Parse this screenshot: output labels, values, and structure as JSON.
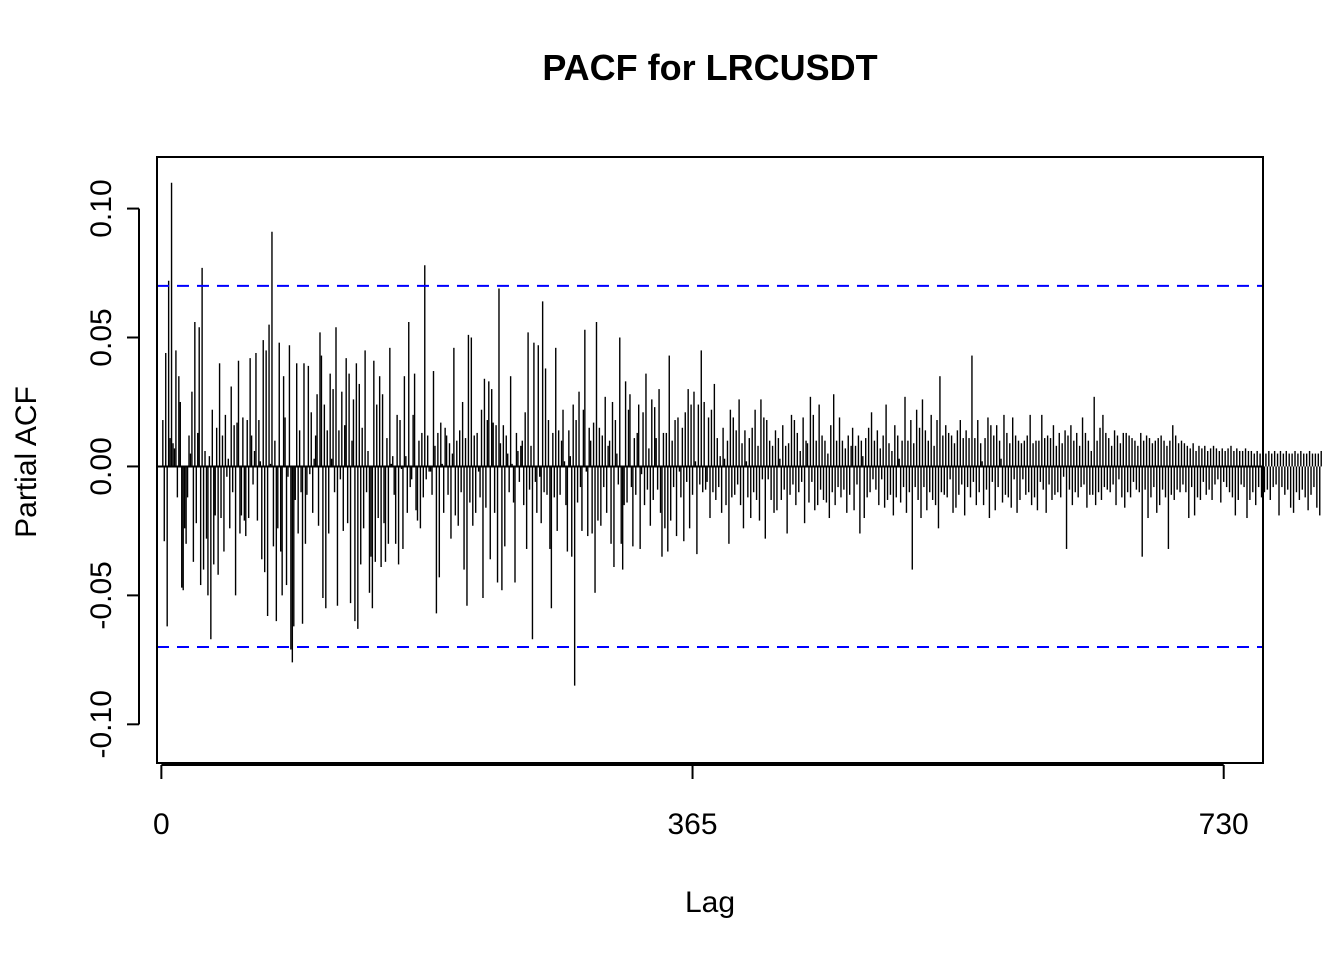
{
  "chart_data": {
    "type": "bar",
    "title": "PACF for LRCUSDT",
    "xlabel": "Lag",
    "ylabel": "Partial ACF",
    "xlim": [
      -3,
      757
    ],
    "ylim": [
      -0.115,
      0.12
    ],
    "x_ticks": [
      0,
      365,
      730
    ],
    "x_tick_labels": [
      "0",
      "365",
      "730"
    ],
    "y_ticks": [
      -0.1,
      -0.05,
      0.0,
      0.05,
      0.1
    ],
    "y_tick_labels": [
      "-0.10",
      "-0.05",
      "0.00",
      "0.05",
      "0.10"
    ],
    "confidence_bound": 0.07,
    "series_color": "#000000",
    "bound_color": "#0000ff",
    "grid": false,
    "legend": "none",
    "lags_start": 1,
    "values": [
      0.018,
      -0.029,
      0.044,
      -0.062,
      0.072,
      0.011,
      0.11,
      0.009,
      0.007,
      0.045,
      -0.012,
      0.035,
      0.025,
      -0.047,
      -0.048,
      -0.024,
      -0.03,
      -0.012,
      0.012,
      0.005,
      0.029,
      -0.037,
      0.056,
      -0.022,
      0.013,
      0.054,
      -0.046,
      0.077,
      -0.04,
      0.006,
      -0.028,
      -0.05,
      0.004,
      -0.067,
      0.022,
      -0.038,
      -0.019,
      0.015,
      -0.042,
      0.04,
      -0.02,
      0.012,
      -0.033,
      0.02,
      -0.004,
      0.003,
      -0.024,
      0.031,
      -0.01,
      0.016,
      -0.05,
      0.017,
      0.041,
      -0.026,
      -0.019,
      0.019,
      -0.021,
      -0.027,
      0.018,
      -0.02,
      0.042,
      0.012,
      -0.007,
      0.006,
      0.044,
      -0.021,
      0.018,
      0.002,
      -0.036,
      0.049,
      -0.041,
      0.045,
      -0.058,
      0.055,
      0.001,
      0.091,
      -0.031,
      0.01,
      -0.06,
      -0.024,
      0.048,
      -0.033,
      -0.05,
      0.035,
      0.019,
      -0.046,
      -0.004,
      0.047,
      -0.071,
      -0.076,
      -0.062,
      -0.013,
      0.04,
      -0.026,
      0.014,
      -0.01,
      -0.061,
      0.04,
      -0.03,
      -0.011,
      0.039,
      -0.003,
      0.021,
      -0.018,
      0.003,
      0.012,
      0.028,
      -0.023,
      0.052,
      0.043,
      -0.051,
      0.024,
      -0.055,
      0.014,
      -0.026,
      0.036,
      0.003,
      0.03,
      -0.01,
      0.054,
      -0.054,
      0.014,
      -0.005,
      0.029,
      -0.025,
      0.016,
      0.042,
      -0.022,
      0.036,
      -0.053,
      0.01,
      0.026,
      -0.06,
      0.04,
      -0.063,
      0.032,
      -0.038,
      0.015,
      -0.024,
      0.045,
      -0.01,
      0.006,
      -0.049,
      -0.035,
      -0.055,
      0.041,
      -0.037,
      0.024,
      -0.02,
      0.035,
      -0.039,
      0.028,
      -0.022,
      -0.037,
      0.011,
      -0.03,
      0.046,
      0.001,
      0.004,
      -0.011,
      -0.03,
      0.02,
      -0.038,
      0.018,
      -0.001,
      -0.032,
      0.035,
      0.004,
      -0.018,
      0.056,
      -0.008,
      -0.005,
      0.02,
      0.036,
      -0.017,
      -0.021,
      0.01,
      -0.024,
      0.013,
      -0.012,
      0.078,
      -0.005,
      0.012,
      -0.002,
      -0.002,
      -0.011,
      0.037,
      0.008,
      -0.057,
      0.013,
      -0.043,
      0.017,
      0.001,
      -0.018,
      0.015,
      0.012,
      -0.011,
      0.009,
      -0.028,
      0.005,
      0.046,
      -0.019,
      0.01,
      -0.023,
      0.014,
      -0.01,
      0.025,
      -0.04,
      0.011,
      -0.054,
      0.051,
      -0.014,
      0.05,
      -0.023,
      0.012,
      -0.018,
      0.013,
      -0.002,
      -0.012,
      0.022,
      -0.051,
      0.034,
      -0.016,
      0.018,
      0.033,
      -0.036,
      0.03,
      0.017,
      -0.018,
      0.016,
      -0.045,
      0.069,
      0.009,
      -0.048,
      0.016,
      -0.031,
      0.012,
      0.005,
      -0.01,
      0.035,
      0.001,
      -0.014,
      -0.045,
      0.013,
      0.006,
      -0.006,
      0.008,
      0.01,
      -0.015,
      0.021,
      -0.032,
      0.052,
      -0.009,
      0.008,
      -0.067,
      0.048,
      -0.006,
      -0.018,
      0.047,
      -0.004,
      -0.022,
      0.064,
      -0.01,
      0.038,
      -0.011,
      0.018,
      -0.032,
      -0.055,
      0.013,
      -0.012,
      0.046,
      -0.025,
      0.014,
      -0.011,
      0.01,
      0.022,
      0.002,
      -0.015,
      -0.033,
      0.014,
      0.004,
      -0.035,
      0.024,
      -0.085,
      0.018,
      -0.014,
      0.029,
      -0.008,
      -0.025,
      0.022,
      0.053,
      -0.002,
      -0.027,
      0.015,
      0.01,
      -0.026,
      0.017,
      -0.049,
      0.056,
      -0.021,
      0.015,
      -0.023,
      0.012,
      -0.008,
      0.027,
      -0.018,
      0.008,
      0.01,
      -0.03,
      0.025,
      -0.039,
      0.018,
      0.005,
      -0.007,
      0.05,
      -0.03,
      -0.04,
      -0.015,
      0.033,
      -0.014,
      0.022,
      0.028,
      -0.008,
      -0.031,
      0.011,
      -0.011,
      0.013,
      0.024,
      -0.032,
      -0.003,
      0.021,
      -0.015,
      0.036,
      -0.009,
      0.007,
      -0.023,
      0.026,
      -0.013,
      0.023,
      0.011,
      -0.009,
      0.03,
      -0.018,
      -0.035,
      0.013,
      -0.024,
      0.013,
      -0.033,
      0.043,
      -0.021,
      0.01,
      -0.008,
      0.018,
      -0.027,
      0.019,
      -0.002,
      -0.012,
      0.015,
      -0.029,
      0.021,
      -0.006,
      0.03,
      -0.024,
      0.024,
      -0.011,
      0.029,
      0.002,
      -0.034,
      0.024,
      -0.007,
      0.045,
      -0.01,
      0.025,
      -0.009,
      -0.006,
      0.019,
      -0.02,
      0.022,
      -0.01,
      0.032,
      -0.013,
      0.011,
      -0.008,
      0.004,
      -0.018,
      0.015,
      0.003,
      -0.015,
      0.01,
      -0.03,
      0.022,
      -0.012,
      0.019,
      -0.011,
      0.014,
      -0.007,
      0.026,
      -0.015,
      0.009,
      -0.024,
      0.014,
      0.002,
      -0.012,
      0.011,
      -0.02,
      0.015,
      -0.01,
      0.022,
      -0.013,
      0.008,
      -0.021,
      0.026,
      -0.005,
      0.019,
      -0.028,
      0.018,
      -0.005,
      0.01,
      -0.013,
      0.008,
      -0.018,
      0.014,
      -0.017,
      0.011,
      0.003,
      -0.013,
      0.016,
      -0.009,
      0.008,
      -0.026,
      0.009,
      -0.011,
      0.02,
      -0.007,
      0.018,
      -0.015,
      0.013,
      -0.01,
      0.006,
      -0.006,
      0.019,
      -0.022,
      0.01,
      0.009,
      -0.014,
      0.027,
      -0.006,
      0.02,
      -0.017,
      0.01,
      -0.015,
      0.024,
      -0.009,
      0.012,
      -0.013,
      0.01,
      -0.014,
      0.005,
      -0.02,
      0.016,
      -0.01,
      0.028,
      -0.015,
      0.01,
      -0.008,
      0.019,
      -0.012,
      0.01,
      -0.009,
      0.007,
      -0.018,
      0.012,
      -0.011,
      0.008,
      0.015,
      -0.017,
      0.008,
      -0.007,
      0.012,
      -0.026,
      0.01,
      0.004,
      -0.02,
      0.011,
      -0.012,
      0.015,
      -0.01,
      0.021,
      -0.005,
      0.01,
      -0.009,
      0.014,
      -0.015,
      0.007,
      -0.005,
      0.012,
      -0.016,
      0.024,
      -0.013,
      0.009,
      -0.011,
      0.006,
      -0.019,
      0.016,
      -0.012,
      0.012,
      0.003,
      -0.014,
      0.01,
      -0.008,
      0.027,
      -0.018,
      0.01,
      -0.01,
      0.018,
      -0.04,
      0.009,
      -0.008,
      0.022,
      -0.013,
      0.015,
      -0.02,
      0.026,
      -0.008,
      0.014,
      -0.017,
      0.01,
      -0.01,
      0.02,
      -0.013,
      0.008,
      -0.015,
      0.018,
      -0.024,
      0.035,
      -0.01,
      0.012,
      -0.011,
      0.016,
      -0.012,
      0.013,
      -0.005,
      0.012,
      -0.018,
      0.009,
      -0.016,
      0.014,
      -0.011,
      0.018,
      -0.007,
      0.011,
      -0.019,
      0.014,
      -0.008,
      0.011,
      -0.012,
      0.043,
      -0.006,
      0.011,
      -0.015,
      0.018,
      -0.01,
      0.009,
      0.002,
      -0.015,
      0.011,
      -0.009,
      0.019,
      -0.02,
      0.016,
      -0.006,
      0.012,
      -0.017,
      0.016,
      -0.008,
      0.01,
      0.003,
      -0.014,
      0.02,
      -0.011,
      0.013,
      -0.012,
      0.009,
      -0.016,
      0.019,
      -0.005,
      0.012,
      -0.018,
      0.01,
      -0.013,
      0.009,
      -0.005,
      0.01,
      -0.011,
      0.012,
      -0.01,
      0.02,
      -0.015,
      0.009,
      -0.012,
      0.01,
      -0.017,
      0.01,
      -0.006,
      0.02,
      -0.009,
      0.011,
      -0.018,
      0.012,
      -0.007,
      0.011,
      -0.013,
      0.016,
      -0.011,
      0.008,
      -0.01,
      0.013,
      -0.012,
      0.009,
      -0.004,
      0.014,
      -0.032,
      0.012,
      -0.009,
      0.016,
      -0.015,
      0.01,
      -0.01,
      0.013,
      -0.012,
      0.008,
      -0.008,
      0.019,
      -0.007,
      0.013,
      -0.016,
      0.01,
      -0.011,
      0.006,
      -0.011,
      0.027,
      -0.015,
      0.01,
      -0.01,
      0.015,
      -0.013,
      0.02,
      -0.008,
      0.013,
      -0.009,
      0.011,
      -0.01,
      0.008,
      -0.007,
      0.014,
      -0.015,
      0.012,
      -0.005,
      0.009,
      -0.012,
      0.013,
      -0.016,
      0.013,
      -0.01,
      0.012,
      -0.012,
      0.011,
      -0.006,
      0.01,
      -0.009,
      0.008,
      -0.01,
      0.013,
      -0.035,
      0.01,
      -0.009,
      0.012,
      -0.02,
      0.011,
      -0.012,
      0.009,
      -0.008,
      0.01,
      -0.018,
      0.011,
      -0.015,
      0.012,
      -0.009,
      0.01,
      -0.012,
      0.008,
      -0.032,
      0.01,
      -0.011,
      0.016,
      -0.013,
      0.012,
      -0.009,
      0.009,
      -0.01,
      0.01,
      -0.007,
      0.009,
      -0.01,
      0.008,
      -0.02,
      0.007,
      -0.008,
      0.009,
      -0.019,
      0.006,
      -0.012,
      0.008,
      -0.013,
      0.007,
      -0.006,
      0.008,
      -0.011,
      0.006,
      -0.009,
      0.007,
      -0.013,
      0.008,
      -0.007,
      0.007,
      -0.005,
      0.006,
      -0.014,
      0.007,
      -0.006,
      0.006,
      -0.008,
      0.007,
      -0.01,
      0.008,
      -0.012,
      0.006,
      -0.019,
      0.007,
      -0.013,
      0.006,
      -0.007,
      0.006,
      -0.008,
      0.007,
      -0.02,
      0.006,
      -0.013,
      0.006,
      -0.01,
      0.005,
      -0.015,
      0.006,
      -0.008,
      0.005,
      -0.012,
      0.006,
      -0.01,
      0.005,
      -0.009,
      0.006,
      -0.013,
      0.005,
      -0.008,
      0.006,
      -0.007,
      0.005,
      -0.019,
      0.006,
      -0.008,
      0.005,
      -0.011,
      0.006,
      -0.009,
      0.005,
      -0.016,
      0.005,
      -0.018,
      0.006,
      -0.01,
      0.005,
      -0.013,
      0.006,
      -0.009,
      0.005,
      -0.012,
      0.005,
      -0.017,
      0.006,
      -0.011,
      0.005,
      -0.008,
      0.005,
      -0.016,
      0.005,
      -0.019,
      0.006
    ]
  }
}
